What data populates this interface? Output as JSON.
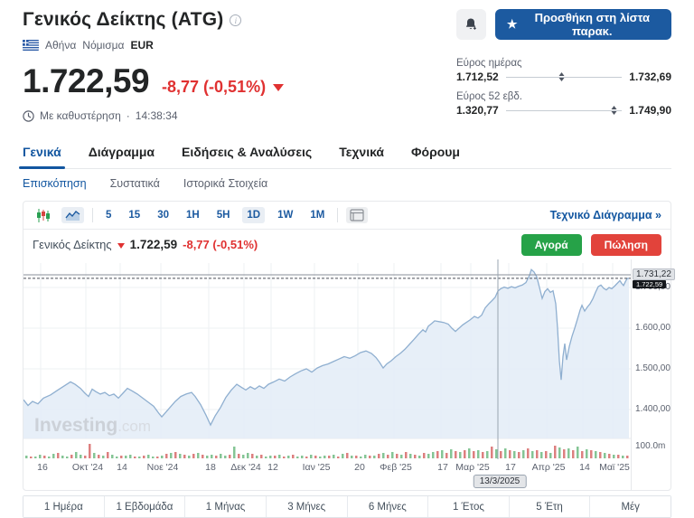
{
  "header": {
    "title": "Γενικός Δείκτης (ATG)",
    "exchange": "Αθήνα",
    "currency_label": "Νόμισμα",
    "currency": "EUR",
    "price": "1.722,59",
    "change": "-8,77 (-0,51%)",
    "delay_text": "Με καθυστέρηση",
    "time": "14:38:34",
    "watchlist_button": "Προσθήκη στη λίστα παρακ.",
    "star_icon": "★",
    "day_range": {
      "label": "Εύρος ημέρας",
      "low": "1.712,52",
      "high": "1.732,69",
      "pos": 48
    },
    "week52_range": {
      "label": "Εύρος 52 εβδ.",
      "low": "1.320,77",
      "high": "1.749,90",
      "pos": 93
    }
  },
  "tabs": [
    {
      "label": "Γενικά"
    },
    {
      "label": "Διάγραμμα"
    },
    {
      "label": "Ειδήσεις & Αναλύσεις"
    },
    {
      "label": "Τεχνικά"
    },
    {
      "label": "Φόρουμ"
    }
  ],
  "subtabs": [
    {
      "label": "Επισκόπηση"
    },
    {
      "label": "Συστατικά"
    },
    {
      "label": "Ιστορικά Στοιχεία"
    }
  ],
  "toolbar": {
    "timeframes": [
      "5",
      "15",
      "30",
      "1H",
      "5H",
      "1D",
      "1W",
      "1M"
    ],
    "active_timeframe": "1D",
    "technical_link": "Τεχνικό Διάγραμμα »"
  },
  "legend": {
    "name": "Γενικός Δείκτης",
    "price": "1.722,59",
    "change": "-8,77 (-0,51%)"
  },
  "trade": {
    "buy": "Αγορά",
    "sell": "Πώληση"
  },
  "watermark": {
    "brand": "Investing",
    "suffix": ".com"
  },
  "period_buttons": [
    "1 Ημέρα",
    "1 Εβδομάδα",
    "1 Μήνας",
    "3 Μήνες",
    "6 Μήνες",
    "1 Έτος",
    "5 Έτη",
    "Μέγ"
  ],
  "colors": {
    "accent_blue": "#1c5aa0",
    "red": "#e03131",
    "buy_green": "#26a248",
    "sell_red": "#e2433b",
    "area_fill": "#e3ecf7",
    "area_line": "#8fafd0",
    "vol_green": "#84c595",
    "vol_red": "#dd7f7f"
  },
  "chart_data": {
    "type": "area",
    "title": "Γενικός Δείκτης (ATG) 1D",
    "ylabel": "EUR",
    "last_price": 1722.59,
    "last_price_label": "1.722,59",
    "reference_line": 1731.22,
    "reference_line_label": "1.731,22",
    "y_ticks": [
      {
        "label": "1.700,00",
        "value": 1700
      },
      {
        "label": "1.600,00",
        "value": 1600
      },
      {
        "label": "1.500,00",
        "value": 1500
      },
      {
        "label": "1.400,00",
        "value": 1400
      }
    ],
    "volume_axis_label": "100.0m",
    "x_ticks": [
      {
        "label": "16",
        "x": 19
      },
      {
        "label": "Οκτ '24",
        "x": 69
      },
      {
        "label": "14",
        "x": 107
      },
      {
        "label": "Νοε '24",
        "x": 152
      },
      {
        "label": "18",
        "x": 205
      },
      {
        "label": "Δεκ '24",
        "x": 244
      },
      {
        "label": "12",
        "x": 274
      },
      {
        "label": "Ιαν '25",
        "x": 322
      },
      {
        "label": "20",
        "x": 370
      },
      {
        "label": "Φεβ '25",
        "x": 410
      },
      {
        "label": "17",
        "x": 462
      },
      {
        "label": "Μαρ '25",
        "x": 495
      },
      {
        "label": "17",
        "x": 537
      },
      {
        "label": "Απρ '25",
        "x": 579
      },
      {
        "label": "14",
        "x": 619
      },
      {
        "label": "Μαϊ '25",
        "x": 652
      }
    ],
    "crosshair": {
      "x": 525,
      "date": "13/3/2025"
    },
    "points": [
      [
        0,
        1424
      ],
      [
        5,
        1410
      ],
      [
        10,
        1420
      ],
      [
        16,
        1414
      ],
      [
        22,
        1428
      ],
      [
        30,
        1436
      ],
      [
        38,
        1448
      ],
      [
        45,
        1458
      ],
      [
        52,
        1468
      ],
      [
        57,
        1462
      ],
      [
        63,
        1452
      ],
      [
        68,
        1440
      ],
      [
        72,
        1432
      ],
      [
        76,
        1450
      ],
      [
        80,
        1444
      ],
      [
        85,
        1438
      ],
      [
        90,
        1442
      ],
      [
        95,
        1434
      ],
      [
        100,
        1438
      ],
      [
        105,
        1428
      ],
      [
        110,
        1440
      ],
      [
        115,
        1452
      ],
      [
        120,
        1446
      ],
      [
        126,
        1438
      ],
      [
        132,
        1428
      ],
      [
        138,
        1418
      ],
      [
        144,
        1408
      ],
      [
        150,
        1390
      ],
      [
        153,
        1382
      ],
      [
        157,
        1392
      ],
      [
        162,
        1405
      ],
      [
        168,
        1420
      ],
      [
        174,
        1432
      ],
      [
        180,
        1438
      ],
      [
        186,
        1442
      ],
      [
        190,
        1432
      ],
      [
        196,
        1412
      ],
      [
        202,
        1386
      ],
      [
        207,
        1362
      ],
      [
        212,
        1384
      ],
      [
        218,
        1405
      ],
      [
        224,
        1430
      ],
      [
        230,
        1448
      ],
      [
        236,
        1462
      ],
      [
        241,
        1455
      ],
      [
        246,
        1448
      ],
      [
        251,
        1456
      ],
      [
        256,
        1450
      ],
      [
        261,
        1458
      ],
      [
        266,
        1452
      ],
      [
        271,
        1462
      ],
      [
        277,
        1468
      ],
      [
        283,
        1475
      ],
      [
        289,
        1470
      ],
      [
        295,
        1480
      ],
      [
        301,
        1488
      ],
      [
        307,
        1495
      ],
      [
        313,
        1500
      ],
      [
        319,
        1492
      ],
      [
        325,
        1502
      ],
      [
        331,
        1508
      ],
      [
        337,
        1512
      ],
      [
        343,
        1518
      ],
      [
        349,
        1524
      ],
      [
        355,
        1530
      ],
      [
        361,
        1526
      ],
      [
        367,
        1532
      ],
      [
        373,
        1540
      ],
      [
        379,
        1544
      ],
      [
        385,
        1538
      ],
      [
        390,
        1528
      ],
      [
        394,
        1516
      ],
      [
        398,
        1502
      ],
      [
        402,
        1512
      ],
      [
        407,
        1520
      ],
      [
        412,
        1530
      ],
      [
        417,
        1538
      ],
      [
        422,
        1548
      ],
      [
        427,
        1560
      ],
      [
        432,
        1572
      ],
      [
        437,
        1585
      ],
      [
        442,
        1596
      ],
      [
        445,
        1591
      ],
      [
        448,
        1605
      ],
      [
        452,
        1612
      ],
      [
        455,
        1618
      ],
      [
        460,
        1616
      ],
      [
        465,
        1614
      ],
      [
        470,
        1610
      ],
      [
        474,
        1600
      ],
      [
        478,
        1592
      ],
      [
        482,
        1600
      ],
      [
        486,
        1608
      ],
      [
        490,
        1614
      ],
      [
        494,
        1620
      ],
      [
        499,
        1629
      ],
      [
        503,
        1625
      ],
      [
        507,
        1632
      ],
      [
        511,
        1650
      ],
      [
        515,
        1660
      ],
      [
        519,
        1669
      ],
      [
        522,
        1676
      ],
      [
        525,
        1691
      ],
      [
        528,
        1697
      ],
      [
        532,
        1701
      ],
      [
        536,
        1698
      ],
      [
        540,
        1702
      ],
      [
        544,
        1699
      ],
      [
        548,
        1703
      ],
      [
        552,
        1706
      ],
      [
        556,
        1712
      ],
      [
        560,
        1730
      ],
      [
        562,
        1744
      ],
      [
        565,
        1738
      ],
      [
        568,
        1726
      ],
      [
        571,
        1700
      ],
      [
        574,
        1673
      ],
      [
        577,
        1690
      ],
      [
        580,
        1697
      ],
      [
        583,
        1688
      ],
      [
        586,
        1692
      ],
      [
        589,
        1660
      ],
      [
        591,
        1600
      ],
      [
        593,
        1520
      ],
      [
        595,
        1473
      ],
      [
        597,
        1530
      ],
      [
        599,
        1562
      ],
      [
        601,
        1522
      ],
      [
        604,
        1555
      ],
      [
        607,
        1580
      ],
      [
        610,
        1600
      ],
      [
        613,
        1622
      ],
      [
        616,
        1645
      ],
      [
        618,
        1656
      ],
      [
        621,
        1642
      ],
      [
        624,
        1652
      ],
      [
        627,
        1660
      ],
      [
        630,
        1672
      ],
      [
        633,
        1688
      ],
      [
        636,
        1702
      ],
      [
        639,
        1706
      ],
      [
        642,
        1698
      ],
      [
        645,
        1694
      ],
      [
        648,
        1700
      ],
      [
        651,
        1697
      ],
      [
        654,
        1703
      ],
      [
        657,
        1710
      ],
      [
        660,
        1717
      ],
      [
        662,
        1710
      ],
      [
        664,
        1705
      ],
      [
        666,
        1714
      ],
      [
        668,
        1722
      ],
      [
        670,
        1722.59
      ]
    ],
    "volume_bars": [
      3,
      -2,
      2,
      4,
      -3,
      2,
      5,
      -6,
      3,
      2,
      -4,
      7,
      4,
      -3,
      -16,
      6,
      -4,
      3,
      -7,
      4,
      2,
      -3,
      3,
      4,
      -2,
      2,
      -3,
      4,
      2,
      -2,
      3,
      -5,
      6,
      -7,
      5,
      -4,
      3,
      -5,
      6,
      -4,
      3,
      4,
      -3,
      5,
      3,
      -4,
      13,
      -5,
      4,
      6,
      -5,
      3,
      -4,
      2,
      3,
      -3,
      4,
      -2,
      3,
      -4,
      2,
      3,
      -2,
      4,
      -3,
      2,
      3,
      -3,
      4,
      -2,
      5,
      -6,
      3,
      -3,
      2,
      4,
      -3,
      3,
      -5,
      6,
      -4,
      7,
      -5,
      4,
      -7,
      5,
      -4,
      3,
      -6,
      5,
      7,
      -8,
      9,
      -6,
      10,
      -8,
      7,
      -9,
      11,
      -8,
      9,
      -7,
      8,
      -13,
      10,
      -8,
      11,
      -9,
      8,
      -7,
      9,
      -11,
      8,
      -9,
      7,
      -8,
      6,
      -14,
      12,
      -10,
      11,
      -9,
      13,
      -8,
      10,
      -9,
      8,
      -7,
      6,
      -5,
      4,
      -4,
      3,
      -3,
      3,
      2
    ]
  }
}
